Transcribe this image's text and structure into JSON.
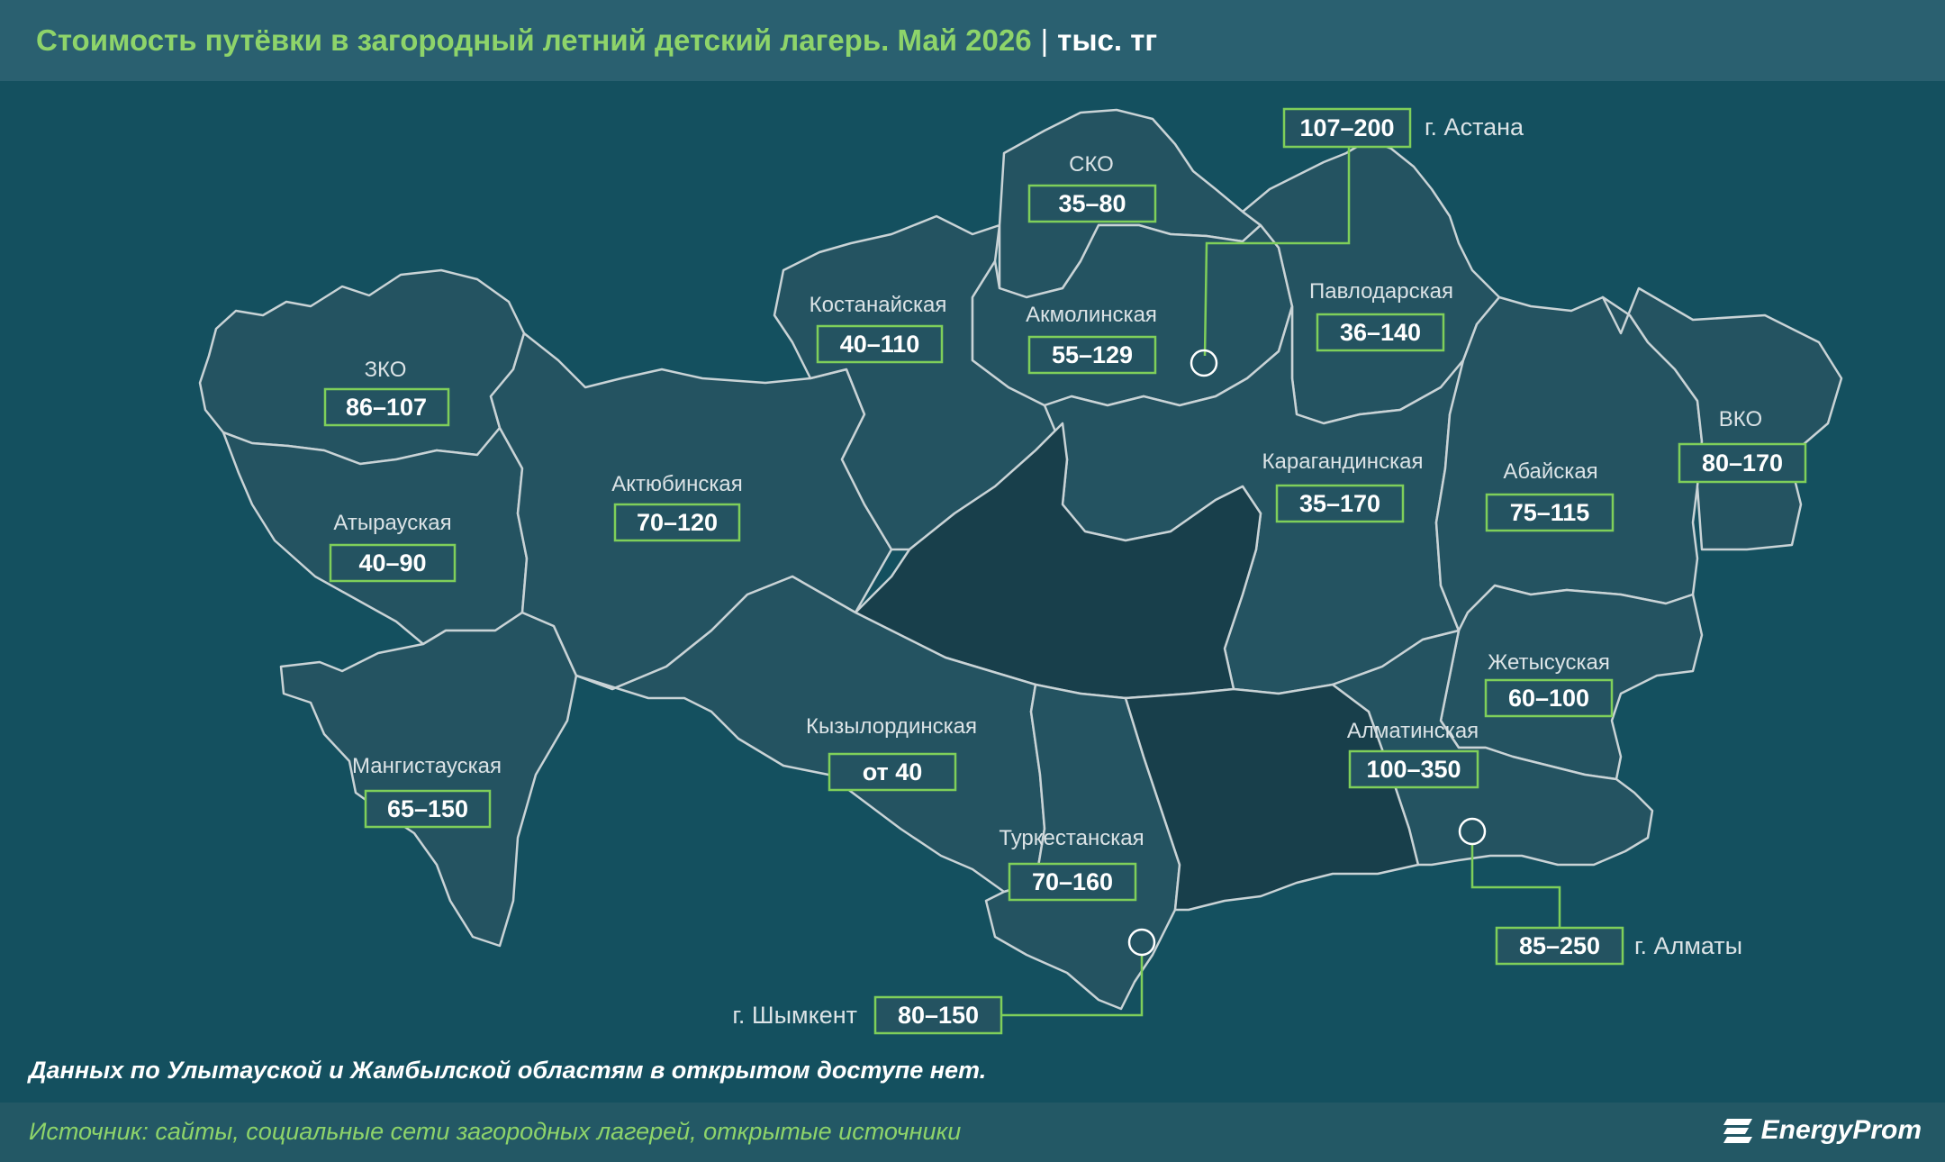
{
  "header": {
    "title": "Стоимость путёвки в загородный летний детский лагерь. Май 2026",
    "separator": "|",
    "unit": "тыс. тг"
  },
  "regions": [
    {
      "name": "ЗКО",
      "value": "86–107"
    },
    {
      "name": "Атырауская",
      "value": "40–90"
    },
    {
      "name": "Мангистауская",
      "value": "65–150"
    },
    {
      "name": "Актюбинская",
      "value": "70–120"
    },
    {
      "name": "Костанайская",
      "value": "40–110"
    },
    {
      "name": "СКО",
      "value": "35–80"
    },
    {
      "name": "Акмолинская",
      "value": "55–129"
    },
    {
      "name": "Павлодарская",
      "value": "36–140"
    },
    {
      "name": "Карагандинская",
      "value": "35–170"
    },
    {
      "name": "Абайская",
      "value": "75–115"
    },
    {
      "name": "ВКО",
      "value": "80–170"
    },
    {
      "name": "Кызылординская",
      "value": "от 40"
    },
    {
      "name": "Туркестанская",
      "value": "70–160"
    },
    {
      "name": "Жетысуская",
      "value": "60–100"
    },
    {
      "name": "Алматинская",
      "value": "100–350"
    }
  ],
  "cities": [
    {
      "name": "г. Астана",
      "value": "107–200"
    },
    {
      "name": "г. Алматы",
      "value": "85–250"
    },
    {
      "name": "г. Шымкент",
      "value": "80–150"
    }
  ],
  "note": "Данных по Улытауской и Жамбылской областям в открытом доступе нет.",
  "footer": {
    "source": "Источник: сайты, социальные сети загородных лагерей, открытые источники",
    "brand": "EnergyProm"
  },
  "colors": {
    "background": "#14505f",
    "header": "#2a6070",
    "region": "#245361",
    "region_no_data": "#183f4b",
    "accent": "#7fcf5a"
  }
}
